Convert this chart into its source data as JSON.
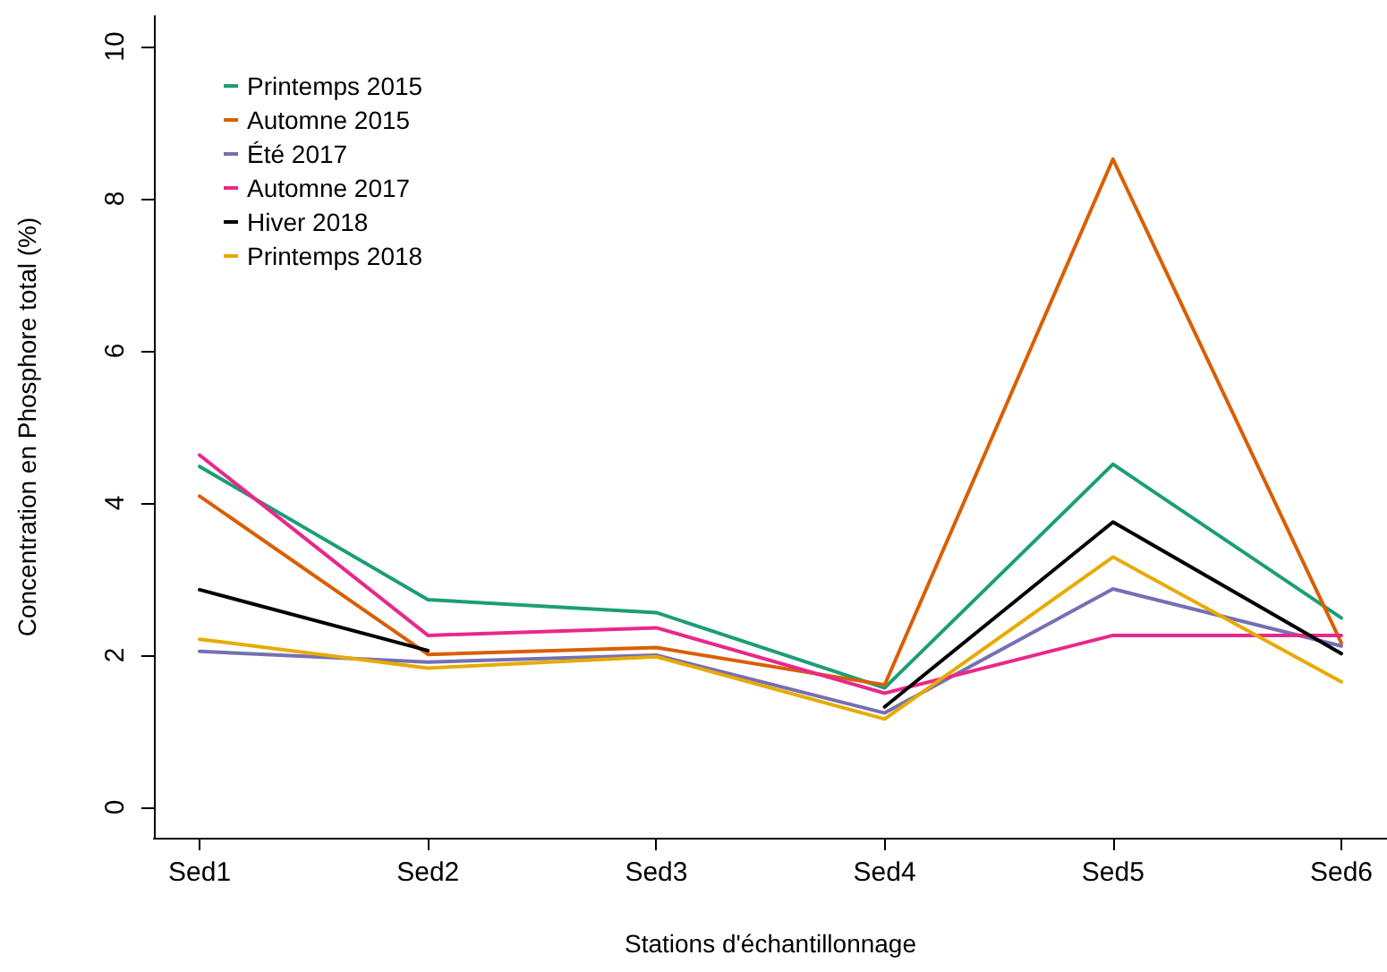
{
  "chart_data": {
    "type": "line",
    "xlabel": "Stations d'échantillonnage",
    "ylabel": "Concentration en Phosphore total (%)",
    "categories": [
      "Sed1",
      "Sed2",
      "Sed3",
      "Sed4",
      "Sed5",
      "Sed6"
    ],
    "series": [
      {
        "name": "Printemps 2015",
        "color": "#1b9e77",
        "values": [
          4.48,
          2.73,
          2.56,
          1.57,
          4.51,
          2.49
        ]
      },
      {
        "name": "Automne 2015",
        "color": "#d95f02",
        "values": [
          4.09,
          2.01,
          2.1,
          1.61,
          8.52,
          2.16
        ]
      },
      {
        "name": "Été 2017",
        "color": "#7570b3",
        "values": [
          2.05,
          1.91,
          2.0,
          1.24,
          2.87,
          2.12
        ]
      },
      {
        "name": "Automne 2017",
        "color": "#e7298a",
        "values": [
          4.63,
          2.26,
          2.36,
          1.5,
          2.26,
          2.26
        ]
      },
      {
        "name": "Hiver 2018",
        "color": "#000000",
        "values": [
          2.86,
          2.06,
          null,
          1.32,
          3.75,
          2.02
        ]
      },
      {
        "name": "Printemps 2018",
        "color": "#e6ab02",
        "values": [
          2.21,
          1.83,
          1.98,
          1.16,
          3.29,
          1.65
        ]
      }
    ],
    "ylim": [
      -0.4,
      10.4
    ],
    "yticks": [
      0,
      2,
      4,
      6,
      8,
      10
    ],
    "legend": "top left",
    "grid": false,
    "marker": "none"
  }
}
